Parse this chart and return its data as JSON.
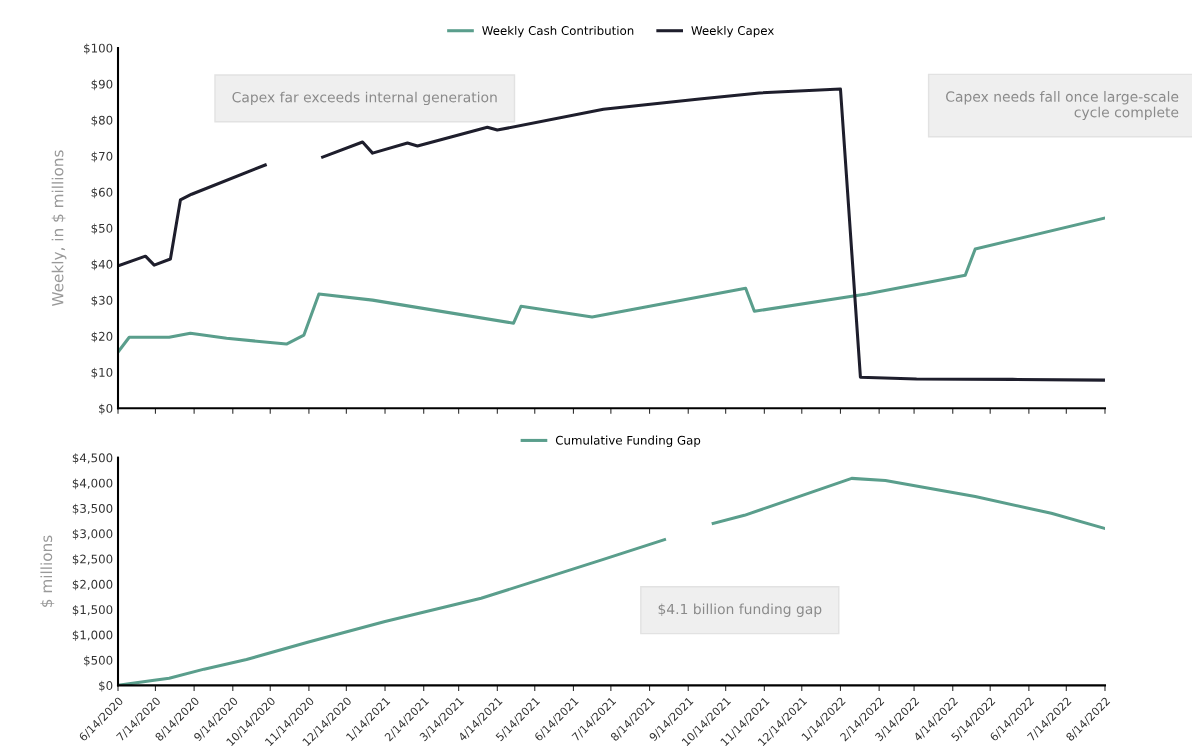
{
  "chart_data": [
    {
      "type": "line",
      "ylabel": "Weekly, in $ millions",
      "xlim": [
        "2020-06-14",
        "2022-08-14"
      ],
      "xticks": [
        {
          "value": "2020-06-14",
          "label": null
        },
        {
          "value": "2020-07-14",
          "label": null
        },
        {
          "value": "2020-08-14",
          "label": null
        },
        {
          "value": "2020-09-14",
          "label": null
        },
        {
          "value": "2020-10-14",
          "label": null
        },
        {
          "value": "2020-11-14",
          "label": null
        },
        {
          "value": "2020-12-14",
          "label": null
        },
        {
          "value": "2021-01-14",
          "label": null
        },
        {
          "value": "2021-02-14",
          "label": null
        },
        {
          "value": "2021-03-14",
          "label": null
        },
        {
          "value": "2021-04-14",
          "label": null
        },
        {
          "value": "2021-05-14",
          "label": null
        },
        {
          "value": "2021-06-14",
          "label": null
        },
        {
          "value": "2021-07-14",
          "label": null
        },
        {
          "value": "2021-08-14",
          "label": null
        },
        {
          "value": "2021-09-14",
          "label": null
        },
        {
          "value": "2021-10-14",
          "label": null
        },
        {
          "value": "2021-11-14",
          "label": null
        },
        {
          "value": "2021-12-14",
          "label": null
        },
        {
          "value": "2022-01-14",
          "label": null
        },
        {
          "value": "2022-02-14",
          "label": null
        },
        {
          "value": "2022-03-14",
          "label": null
        },
        {
          "value": "2022-04-14",
          "label": null
        },
        {
          "value": "2022-05-14",
          "label": null
        },
        {
          "value": "2022-06-14",
          "label": null
        },
        {
          "value": "2022-07-14",
          "label": null
        },
        {
          "value": "2022-08-14",
          "label": null
        }
      ],
      "ylim": [
        0,
        100
      ],
      "yticks": [
        {
          "value": 0,
          "label": "$0"
        },
        {
          "value": 10,
          "label": "$10"
        },
        {
          "value": 20,
          "label": "$20"
        },
        {
          "value": 30,
          "label": "$30"
        },
        {
          "value": 40,
          "label": "$40"
        },
        {
          "value": 50,
          "label": "$50"
        },
        {
          "value": 60,
          "label": "$60"
        },
        {
          "value": 70,
          "label": "$70"
        },
        {
          "value": 80,
          "label": "$80"
        },
        {
          "value": 90,
          "label": "$90"
        },
        {
          "value": 100,
          "label": "$100"
        }
      ],
      "tick_labels": "y",
      "grid": false,
      "legend": "top",
      "series": [
        {
          "name": "Weekly Cash Contribution",
          "color": "#5a9e8c",
          "x": [
            "2020-06-14",
            "2020-06-23",
            "2020-07-25",
            "2020-08-11",
            "2020-09-09",
            "2020-10-27",
            "2020-11-10",
            "2020-11-22",
            "2021-01-04",
            "2021-04-27",
            "2021-05-03",
            "2021-06-29",
            "2021-10-30",
            "2021-11-06",
            "2022-02-04",
            "2022-04-24",
            "2022-05-02",
            "2022-08-14"
          ],
          "values": [
            15.6,
            19.7,
            19.7,
            20.8,
            19.4,
            17.8,
            20.3,
            31.7,
            30,
            23.6,
            28.3,
            25.3,
            33.3,
            26.9,
            31.7,
            36.9,
            44.2,
            52.8
          ]
        },
        {
          "name": "Weekly Capex",
          "color": "#1e1e2c",
          "x": [
            "2020-06-14",
            "2020-07-06",
            "2020-07-13",
            "2020-07-26",
            "2020-08-03",
            "2020-08-12",
            "2020-10-10",
            "2020-11-03",
            "2020-11-25",
            "2020-12-27",
            "2021-01-04",
            "2021-02-01",
            "2021-02-09",
            "2021-04-06",
            "2021-04-14",
            "2021-07-08",
            "2021-09-23",
            "2021-11-10",
            "2022-01-14",
            "2022-01-30",
            "2022-03-16",
            "2022-06-01",
            "2022-08-14"
          ],
          "values": [
            39.5,
            42.2,
            39.7,
            41.4,
            57.8,
            59.4,
            67.5,
            null,
            69.7,
            73.9,
            70.8,
            73.6,
            72.8,
            78,
            77.2,
            83,
            85.8,
            87.5,
            88.6,
            8.6,
            8.1,
            8.0,
            7.8
          ]
        }
      ],
      "annotations": [
        "Capex far exceeds internal generation",
        "Capex needs fall once large-scale cycle complete"
      ]
    },
    {
      "type": "line",
      "ylabel": "$ millions",
      "xlim": [
        "2020-06-14",
        "2022-08-14"
      ],
      "xticks": [
        {
          "value": "2020-06-14",
          "label": "6/14/2020"
        },
        {
          "value": "2020-07-14",
          "label": "7/14/2020"
        },
        {
          "value": "2020-08-14",
          "label": "8/14/2020"
        },
        {
          "value": "2020-09-14",
          "label": "9/14/2020"
        },
        {
          "value": "2020-10-14",
          "label": "10/14/2020"
        },
        {
          "value": "2020-11-14",
          "label": "11/14/2020"
        },
        {
          "value": "2020-12-14",
          "label": "12/14/2020"
        },
        {
          "value": "2021-01-14",
          "label": "1/14/2021"
        },
        {
          "value": "2021-02-14",
          "label": "2/14/2021"
        },
        {
          "value": "2021-03-14",
          "label": "3/14/2021"
        },
        {
          "value": "2021-04-14",
          "label": "4/14/2021"
        },
        {
          "value": "2021-05-14",
          "label": "5/14/2021"
        },
        {
          "value": "2021-06-14",
          "label": "6/14/2021"
        },
        {
          "value": "2021-07-14",
          "label": "7/14/2021"
        },
        {
          "value": "2021-08-14",
          "label": "8/14/2021"
        },
        {
          "value": "2021-09-14",
          "label": "9/14/2021"
        },
        {
          "value": "2021-10-14",
          "label": "10/14/2021"
        },
        {
          "value": "2021-11-14",
          "label": "11/14/2021"
        },
        {
          "value": "2021-12-14",
          "label": "12/14/2021"
        },
        {
          "value": "2022-01-14",
          "label": "1/14/2022"
        },
        {
          "value": "2022-02-14",
          "label": "2/14/2022"
        },
        {
          "value": "2022-03-14",
          "label": "3/14/2022"
        },
        {
          "value": "2022-04-14",
          "label": "4/14/2022"
        },
        {
          "value": "2022-05-14",
          "label": "5/14/2022"
        },
        {
          "value": "2022-06-14",
          "label": "6/14/2022"
        },
        {
          "value": "2022-07-14",
          "label": "7/14/2022"
        },
        {
          "value": "2022-08-14",
          "label": "8/14/2022"
        }
      ],
      "ylim": [
        0,
        4500
      ],
      "yticks": [
        {
          "value": 0,
          "label": "$0"
        },
        {
          "value": 500,
          "label": "$500"
        },
        {
          "value": 1000,
          "label": "$1,000"
        },
        {
          "value": 1500,
          "label": "$1,500"
        },
        {
          "value": 2000,
          "label": "$2,000"
        },
        {
          "value": 2500,
          "label": "$2,500"
        },
        {
          "value": 3000,
          "label": "$3,000"
        },
        {
          "value": 3500,
          "label": "$3,500"
        },
        {
          "value": 4000,
          "label": "$4,000"
        },
        {
          "value": 4500,
          "label": "$4,500"
        }
      ],
      "grid": false,
      "legend": "top",
      "series": [
        {
          "name": "Cumulative Funding Gap",
          "color": "#5a9e8c",
          "x": [
            "2020-06-14",
            "2020-07-13",
            "2020-07-25",
            "2020-08-22",
            "2020-09-25",
            "2020-11-13",
            "2021-01-14",
            "2021-04-01",
            "2021-07-08",
            "2021-08-26",
            "2021-09-15",
            "2021-10-04",
            "2021-10-29",
            "2022-01-23",
            "2022-02-19",
            "2022-05-02",
            "2022-07-02",
            "2022-08-14"
          ],
          "values": [
            0,
            100,
            140,
            320,
            510,
            850,
            1260,
            1720,
            2490,
            2880,
            null,
            3200,
            3360,
            4090,
            4050,
            3730,
            3400,
            3100
          ]
        }
      ],
      "annotations": [
        "$4.1 billion funding gap"
      ]
    }
  ]
}
